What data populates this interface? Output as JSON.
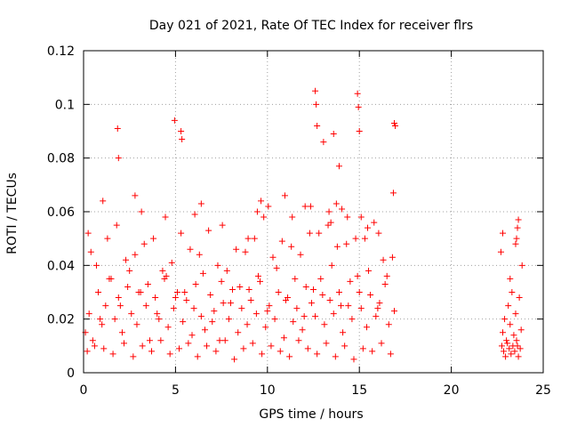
{
  "chart_data": {
    "type": "scatter",
    "title": "Day 021 of 2021, Rate Of TEC Index for receiver flrs",
    "xlabel": "GPS time / hours",
    "ylabel": "ROTI / TECUs",
    "xlim": [
      0,
      25
    ],
    "ylim": [
      0,
      0.12
    ],
    "x_ticks": [
      0,
      5,
      10,
      15,
      20,
      25
    ],
    "x_tick_labels": [
      "0",
      "5",
      "10",
      "15",
      "20",
      "25"
    ],
    "y_ticks": [
      0,
      0.02,
      0.04,
      0.06,
      0.08,
      0.1,
      0.12
    ],
    "y_tick_labels": [
      "0",
      "0.02",
      "0.04",
      "0.06",
      "0.08",
      "0.1",
      "0.12"
    ],
    "grid": true,
    "marker": "+",
    "marker_color": "#ff0000",
    "series": [
      {
        "x": [
          0.1,
          0.3,
          0.5,
          0.8,
          1.0,
          1.2,
          1.5,
          1.7,
          1.9,
          2.1,
          2.4,
          2.6,
          2.9,
          3.1,
          3.4,
          3.6,
          3.9,
          4.1,
          4.4,
          4.6,
          4.9,
          5.1,
          5.4,
          5.6,
          5.9,
          6.1,
          6.4,
          6.6,
          6.9,
          7.1,
          7.4,
          7.6,
          7.9,
          8.1,
          8.4,
          8.6,
          8.9,
          9.1,
          9.4,
          9.6,
          9.9,
          10.1,
          10.4,
          10.6,
          10.9,
          11.1,
          11.4,
          11.6,
          11.9,
          12.1,
          12.4,
          12.6,
          12.9,
          13.1,
          13.4,
          13.6,
          13.9,
          14.1,
          14.4,
          14.6,
          14.9,
          15.1,
          15.4,
          15.6,
          15.9,
          16.1,
          16.4,
          16.6,
          16.9,
          0.2,
          0.6,
          1.1,
          1.6,
          2.2,
          2.7,
          3.2,
          3.7,
          4.2,
          4.7,
          5.2,
          5.7,
          6.2,
          6.7,
          7.2,
          7.7,
          8.2,
          8.7,
          9.2,
          9.7,
          10.2,
          10.7,
          11.2,
          11.7,
          12.2,
          12.7,
          13.2,
          13.7,
          14.2,
          14.7,
          15.2,
          15.7,
          16.2,
          16.7,
          0.4,
          1.3,
          2.3,
          3.3,
          4.3,
          5.3,
          6.3,
          7.3,
          8.3,
          9.3,
          10.3,
          11.3,
          12.3,
          13.3,
          14.3,
          15.3,
          16.3,
          0.7,
          1.8,
          2.8,
          3.8,
          4.8,
          5.8,
          6.8,
          7.8,
          8.8,
          9.8,
          10.8,
          11.8,
          12.8,
          13.8,
          14.8,
          15.8,
          16.8,
          0.9,
          2.0,
          3.0,
          4.0,
          5.0,
          6.0,
          7.0,
          8.0,
          9.0,
          10.0,
          11.0,
          12.0,
          13.0,
          14.0,
          15.0,
          16.0,
          1.4,
          2.5,
          3.5,
          4.5,
          5.5,
          6.5,
          7.5,
          8.5,
          9.5,
          10.5,
          11.5,
          12.5,
          13.5,
          14.5,
          15.5,
          16.5,
          1.85,
          1.9,
          4.95,
          5.3,
          5.35,
          12.6,
          12.65,
          12.7,
          13.05,
          13.6,
          13.9,
          14.9,
          14.95,
          15.0,
          16.9,
          16.95,
          16.85,
          2.8,
          6.4,
          9.65,
          10.05,
          10.95,
          12.35,
          13.35,
          13.75,
          14.05,
          15.1,
          0.25,
          1.05,
          3.15,
          4.45,
          6.05,
          7.55,
          8.95,
          9.45,
          11.35,
          12.05,
          13.45,
          14.35,
          15.45,
          16.05,
          22.75,
          22.8,
          22.9,
          23.0,
          23.1,
          23.2,
          23.3,
          23.4,
          23.5,
          23.6,
          23.7,
          23.8,
          22.85,
          22.95,
          23.05,
          23.15,
          23.25,
          23.35,
          23.45,
          23.55,
          23.65,
          23.75,
          22.7,
          23.55,
          23.6,
          23.65,
          23.5,
          22.8,
          23.2,
          23.85
        ],
        "y": [
          0.015,
          0.022,
          0.012,
          0.03,
          0.018,
          0.025,
          0.035,
          0.02,
          0.028,
          0.015,
          0.032,
          0.022,
          0.018,
          0.03,
          0.025,
          0.012,
          0.028,
          0.02,
          0.035,
          0.017,
          0.024,
          0.03,
          0.019,
          0.027,
          0.014,
          0.033,
          0.021,
          0.016,
          0.029,
          0.023,
          0.012,
          0.026,
          0.02,
          0.031,
          0.015,
          0.024,
          0.018,
          0.027,
          0.022,
          0.034,
          0.017,
          0.025,
          0.02,
          0.03,
          0.013,
          0.028,
          0.019,
          0.024,
          0.016,
          0.032,
          0.026,
          0.021,
          0.035,
          0.018,
          0.027,
          0.022,
          0.03,
          0.015,
          0.025,
          0.02,
          0.036,
          0.024,
          0.017,
          0.029,
          0.021,
          0.026,
          0.033,
          0.018,
          0.023,
          0.008,
          0.01,
          0.009,
          0.007,
          0.011,
          0.006,
          0.01,
          0.008,
          0.012,
          0.007,
          0.009,
          0.011,
          0.006,
          0.01,
          0.008,
          0.012,
          0.005,
          0.009,
          0.011,
          0.007,
          0.01,
          0.008,
          0.006,
          0.012,
          0.009,
          0.007,
          0.011,
          0.006,
          0.01,
          0.005,
          0.009,
          0.008,
          0.011,
          0.007,
          0.045,
          0.05,
          0.042,
          0.048,
          0.038,
          0.052,
          0.044,
          0.04,
          0.046,
          0.05,
          0.043,
          0.047,
          0.052,
          0.055,
          0.048,
          0.05,
          0.042,
          0.04,
          0.055,
          0.044,
          0.05,
          0.041,
          0.046,
          0.053,
          0.038,
          0.045,
          0.058,
          0.049,
          0.044,
          0.052,
          0.047,
          0.05,
          0.056,
          0.043,
          0.02,
          0.025,
          0.03,
          0.022,
          0.028,
          0.024,
          0.019,
          0.026,
          0.031,
          0.023,
          0.027,
          0.021,
          0.029,
          0.025,
          0.03,
          0.024,
          0.035,
          0.038,
          0.033,
          0.036,
          0.03,
          0.037,
          0.034,
          0.032,
          0.036,
          0.039,
          0.035,
          0.031,
          0.04,
          0.034,
          0.038,
          0.036,
          0.091,
          0.08,
          0.094,
          0.09,
          0.087,
          0.105,
          0.1,
          0.092,
          0.086,
          0.089,
          0.077,
          0.104,
          0.099,
          0.09,
          0.093,
          0.092,
          0.067,
          0.066,
          0.063,
          0.064,
          0.062,
          0.066,
          0.062,
          0.06,
          0.063,
          0.061,
          0.058,
          0.052,
          0.064,
          0.06,
          0.058,
          0.059,
          0.055,
          0.05,
          0.06,
          0.058,
          0.062,
          0.056,
          0.058,
          0.054,
          0.052,
          0.01,
          0.015,
          0.02,
          0.012,
          0.025,
          0.018,
          0.03,
          0.014,
          0.022,
          0.01,
          0.028,
          0.016,
          0.008,
          0.006,
          0.011,
          0.009,
          0.007,
          0.01,
          0.008,
          0.012,
          0.006,
          0.009,
          0.045,
          0.05,
          0.054,
          0.057,
          0.048,
          0.052,
          0.035,
          0.04
        ]
      }
    ]
  }
}
